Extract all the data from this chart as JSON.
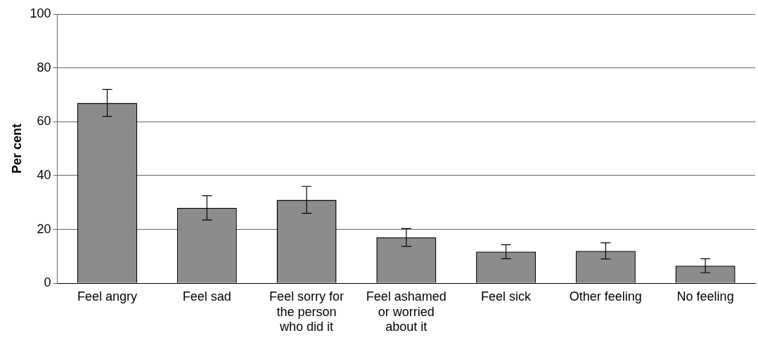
{
  "chart_data": {
    "type": "bar",
    "ylabel": "Per cent",
    "categories": [
      "Feel angry",
      "Feel sad",
      "Feel sorry for the person who did it",
      "Feel ashamed or worried about it",
      "Feel sick",
      "Other feeling",
      "No feeling"
    ],
    "values": [
      67,
      28,
      31,
      17,
      11.7,
      12,
      6.5
    ],
    "errors": [
      5,
      4.5,
      5,
      3.3,
      2.6,
      3,
      2.6
    ],
    "color": "#8c8c8c",
    "ylim": [
      0,
      100
    ],
    "yticks": [
      0,
      20,
      40,
      60,
      80,
      100
    ],
    "grid": "y",
    "legend": false
  }
}
